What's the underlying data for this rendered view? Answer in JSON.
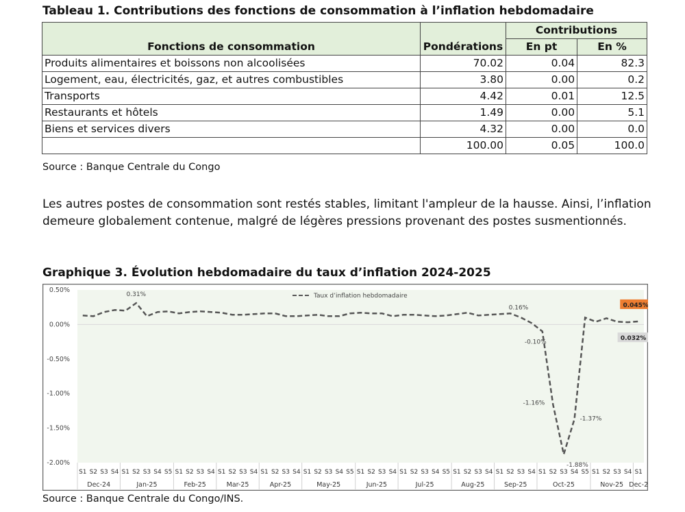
{
  "table": {
    "title": "Tableau 1. Contributions des fonctions de consommation à l’inflation hebdomadaire",
    "headers": {
      "fonctions": "Fonctions de consommation",
      "ponderations": "Pondérations",
      "contributions": "Contributions",
      "en_pt": "En pt",
      "en_pct": "En %"
    },
    "rows": [
      {
        "label": "Produits alimentaires et boissons non alcoolisées",
        "pond": "70.02",
        "pt": "0.04",
        "pct": "82.3"
      },
      {
        "label": "Logement, eau, électricités, gaz, et autres combustibles",
        "pond": "3.80",
        "pt": "0.00",
        "pct": "0.2"
      },
      {
        "label": "Transports",
        "pond": "4.42",
        "pt": "0.01",
        "pct": "12.5"
      },
      {
        "label": "Restaurants et hôtels",
        "pond": "1.49",
        "pt": "0.00",
        "pct": "5.1"
      },
      {
        "label": "Biens et services divers",
        "pond": "4.32",
        "pt": "0.00",
        "pct": "0.0"
      }
    ],
    "total": {
      "label": "",
      "pond": "100.00",
      "pt": "0.05",
      "pct": "100.0"
    },
    "source": "Source : Banque Centrale du Congo"
  },
  "paragraph": "Les autres postes de consommation sont restés stables, limitant l'ampleur de la hausse. Ainsi, l’inflation demeure globalement contenue, malgré de légères pressions provenant des postes susmentionnés.",
  "chart_title": "Graphique 3. Évolution hebdomadaire du taux d’inflation 2024-2025",
  "chart_source": "Source : Banque Centrale du Congo/INS.",
  "chart_data": {
    "type": "line",
    "series_name": "Taux d’inflation hebdomadaire",
    "ylim": [
      -2.0,
      0.5
    ],
    "yticks": [
      "0.50%",
      "0.00%",
      "-0.50%",
      "-1.00%",
      "-1.50%",
      "-2.00%"
    ],
    "ytick_values": [
      0.5,
      0,
      -0.5,
      -1.0,
      -1.5,
      -2.0
    ],
    "months": [
      {
        "label": "Dec-24",
        "weeks": [
          "S1",
          "S2",
          "S3",
          "S4"
        ]
      },
      {
        "label": "Jan-25",
        "weeks": [
          "S1",
          "S2",
          "S3",
          "S4",
          "S5"
        ]
      },
      {
        "label": "Feb-25",
        "weeks": [
          "S1",
          "S2",
          "S3",
          "S4"
        ]
      },
      {
        "label": "Mar-25",
        "weeks": [
          "S1",
          "S2",
          "S3",
          "S4"
        ]
      },
      {
        "label": "Apr-25",
        "weeks": [
          "S1",
          "S2",
          "S3",
          "S4"
        ]
      },
      {
        "label": "May-25",
        "weeks": [
          "S1",
          "S2",
          "S3",
          "S4",
          "S5"
        ]
      },
      {
        "label": "Jun-25",
        "weeks": [
          "S1",
          "S2",
          "S3",
          "S4"
        ]
      },
      {
        "label": "Jul-25",
        "weeks": [
          "S1",
          "S2",
          "S3",
          "S4",
          "S5"
        ]
      },
      {
        "label": "Aug-25",
        "weeks": [
          "S1",
          "S2",
          "S3",
          "S4"
        ]
      },
      {
        "label": "Sep-25",
        "weeks": [
          "S1",
          "S2",
          "S3",
          "S4"
        ]
      },
      {
        "label": "Oct-25",
        "weeks": [
          "S1",
          "S2",
          "S3",
          "S4",
          "S5"
        ]
      },
      {
        "label": "Nov-25",
        "weeks": [
          "S1",
          "S2",
          "S3",
          "S4"
        ]
      },
      {
        "label": "Dec-2",
        "weeks": [
          "S1"
        ]
      }
    ],
    "values": [
      0.13,
      0.12,
      0.18,
      0.21,
      0.2,
      0.31,
      0.12,
      0.18,
      0.19,
      0.16,
      0.18,
      0.19,
      0.18,
      0.17,
      0.14,
      0.14,
      0.15,
      0.16,
      0.16,
      0.12,
      0.12,
      0.13,
      0.14,
      0.12,
      0.12,
      0.16,
      0.17,
      0.16,
      0.16,
      0.12,
      0.14,
      0.14,
      0.13,
      0.12,
      0.13,
      0.15,
      0.17,
      0.13,
      0.14,
      0.15,
      0.16,
      0.1,
      0.02,
      -0.1,
      -1.16,
      -1.88,
      -1.37,
      0.1,
      0.04,
      0.09,
      0.04,
      0.032,
      0.045
    ],
    "data_labels": [
      {
        "index": 5,
        "text": "0.31%"
      },
      {
        "index": 40,
        "text": "0.16%"
      },
      {
        "index": 43,
        "text": "-0.10%"
      },
      {
        "index": 44,
        "text": "-1.16%"
      },
      {
        "index": 45,
        "text": "-1.88%"
      },
      {
        "index": 46,
        "text": "-1.37%"
      },
      {
        "index": 51,
        "text": "0.032%",
        "highlight": "#d9d9d9"
      },
      {
        "index": 52,
        "text": "0.045%",
        "highlight": "#ed7d31"
      }
    ],
    "colors": {
      "line": "#555555",
      "plot_bg": "#f1f6ee"
    }
  }
}
